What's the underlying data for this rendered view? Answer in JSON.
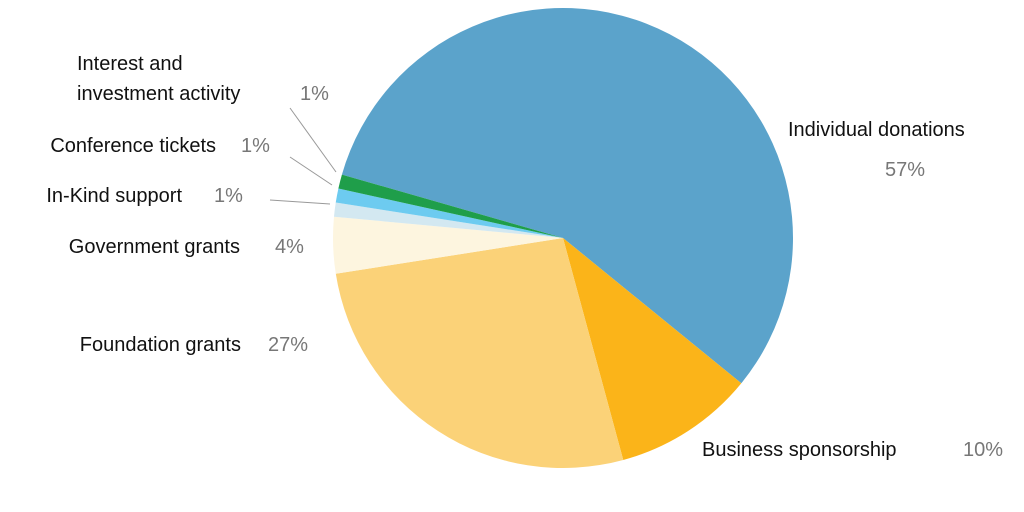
{
  "chart_data": {
    "type": "pie",
    "categories": [
      "Individual donations",
      "Business sponsorship",
      "Foundation grants",
      "Government grants",
      "In-Kind support",
      "Conference tickets",
      "Interest and investment activity"
    ],
    "values": [
      57,
      10,
      27,
      4,
      1,
      1,
      1
    ],
    "value_labels": [
      "57%",
      "10%",
      "27%",
      "4%",
      "1%",
      "1%",
      "1%"
    ],
    "colors": [
      "#5ba3cb",
      "#fbb419",
      "#fbd278",
      "#fdf5df",
      "#d3e8f1",
      "#6dcbf0",
      "#1f9e4a"
    ]
  }
}
